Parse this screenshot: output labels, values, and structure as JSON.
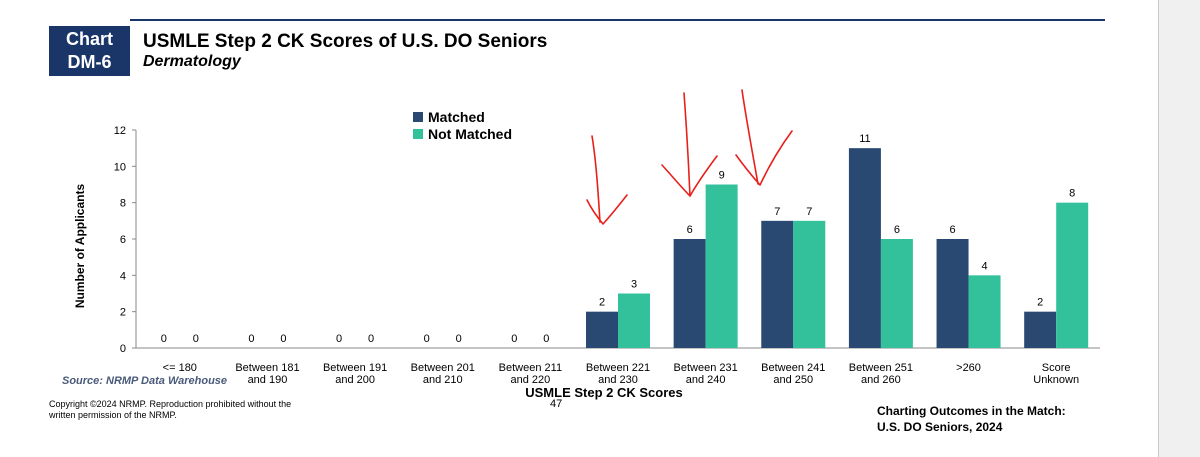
{
  "header": {
    "badge_line1": "Chart",
    "badge_line2": "DM-6",
    "title": "USMLE Step 2 CK Scores of U.S. DO Seniors",
    "subtitle": "Dermatology"
  },
  "colors": {
    "navy": "#1a3668",
    "matched": "#294872",
    "not_matched": "#33c19c",
    "annotation": "#e8201c"
  },
  "chart_data": {
    "type": "bar",
    "xlabel": "USMLE Step 2 CK Scores",
    "ylabel": "Number of Applicants",
    "ylim": [
      0,
      12
    ],
    "yticks": [
      0,
      2,
      4,
      6,
      8,
      10,
      12
    ],
    "grid": false,
    "legend_position": "top-center",
    "categories": [
      [
        "<= 180"
      ],
      [
        "Between 181",
        "and 190"
      ],
      [
        "Between 191",
        "and 200"
      ],
      [
        "Between 201",
        "and 210"
      ],
      [
        "Between 211",
        "and 220"
      ],
      [
        "Between 221",
        "and 230"
      ],
      [
        "Between 231",
        "and 240"
      ],
      [
        "Between 241",
        "and 250"
      ],
      [
        "Between 251",
        "and 260"
      ],
      [
        ">260"
      ],
      [
        "Score",
        "Unknown"
      ]
    ],
    "series": [
      {
        "name": "Matched",
        "values": [
          0,
          0,
          0,
          0,
          0,
          2,
          6,
          7,
          11,
          6,
          2
        ]
      },
      {
        "name": "Not Matched",
        "values": [
          0,
          0,
          0,
          0,
          0,
          3,
          9,
          7,
          6,
          4,
          8
        ]
      }
    ]
  },
  "footer": {
    "source": "Source: NRMP Data Warehouse",
    "copyright_line1": "Copyright ©2024 NRMP. Reproduction prohibited without the",
    "copyright_line2": "written permission of the NRMP.",
    "page_number": "47",
    "right_line1": "Charting Outcomes in the Match:",
    "right_line2": "U.S. DO Seniors, 2024"
  }
}
